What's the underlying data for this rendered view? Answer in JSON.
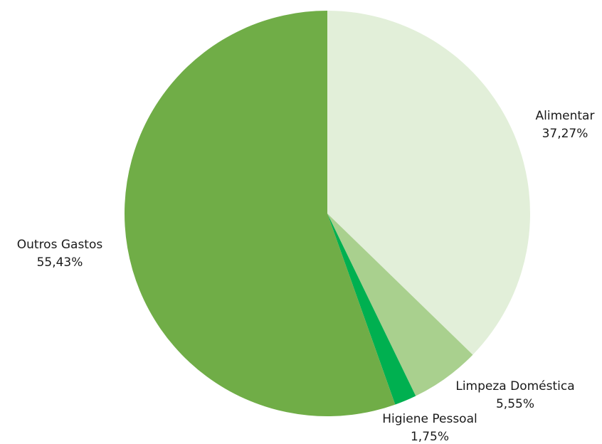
{
  "chart_data": {
    "type": "pie",
    "title": "",
    "slices": [
      {
        "label": "Alimentar",
        "value": 37.27,
        "value_label": "37,27%",
        "color": "#e2efd9"
      },
      {
        "label": "Limpeza Doméstica",
        "value": 5.55,
        "value_label": "5,55%",
        "color": "#a9d08e"
      },
      {
        "label": "Higiene Pessoal",
        "value": 1.75,
        "value_label": "1,75%",
        "color": "#00b050"
      },
      {
        "label": "Outros Gastos",
        "value": 55.43,
        "value_label": "55,43%",
        "color": "#70ad47"
      }
    ],
    "start_angle": "12 o'clock",
    "direction": "clockwise",
    "legend": "none"
  }
}
